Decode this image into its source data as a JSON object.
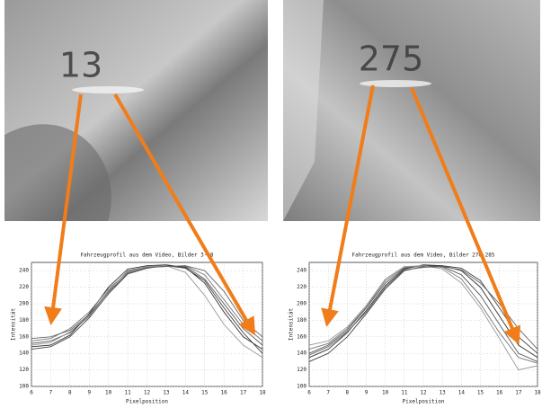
{
  "frames": [
    {
      "label": "13"
    },
    {
      "label": "275"
    }
  ],
  "chart_data": [
    {
      "type": "line",
      "title": "Fahrzeugprofil aus dem Video, Bilder 3-18",
      "xlabel": "Pixelposition",
      "ylabel": "Intensität",
      "x": [
        6,
        7,
        8,
        9,
        10,
        11,
        12,
        13,
        14,
        15,
        16,
        17,
        18
      ],
      "xlim": [
        6,
        18
      ],
      "xticks": [
        6,
        7,
        8,
        9,
        10,
        11,
        12,
        13,
        14,
        15,
        16,
        17,
        18
      ],
      "ylim": [
        100,
        250
      ],
      "yticks": [
        100,
        120,
        140,
        160,
        180,
        200,
        220,
        240
      ],
      "grid": true,
      "series": [
        {
          "color": "#555555",
          "values": [
            152,
            155,
            165,
            185,
            215,
            240,
            245,
            246,
            245,
            230,
            200,
            170,
            150
          ]
        },
        {
          "color": "#333333",
          "values": [
            148,
            150,
            162,
            188,
            220,
            242,
            246,
            247,
            244,
            225,
            190,
            160,
            145
          ]
        },
        {
          "color": "#777777",
          "values": [
            155,
            158,
            170,
            190,
            218,
            238,
            244,
            245,
            246,
            235,
            205,
            175,
            155
          ]
        },
        {
          "color": "#444444",
          "values": [
            145,
            148,
            160,
            183,
            212,
            236,
            243,
            246,
            243,
            228,
            195,
            165,
            140
          ]
        },
        {
          "color": "#999999",
          "values": [
            150,
            153,
            166,
            186,
            216,
            239,
            245,
            246,
            238,
            210,
            175,
            150,
            135
          ]
        },
        {
          "color": "#666666",
          "values": [
            158,
            160,
            168,
            187,
            214,
            237,
            244,
            245,
            246,
            240,
            215,
            180,
            160
          ]
        }
      ]
    },
    {
      "type": "line",
      "title": "Fahrzeugprofil aus dem Video, Bilder 270-285",
      "xlabel": "Pixelposition",
      "ylabel": "Intensität",
      "x": [
        6,
        7,
        8,
        9,
        10,
        11,
        12,
        13,
        14,
        15,
        16,
        17,
        18
      ],
      "xlim": [
        6,
        18
      ],
      "xticks": [
        6,
        7,
        8,
        9,
        10,
        11,
        12,
        13,
        14,
        15,
        16,
        17,
        18
      ],
      "ylim": [
        100,
        250
      ],
      "yticks": [
        100,
        120,
        140,
        160,
        180,
        200,
        220,
        240
      ],
      "grid": true,
      "series": [
        {
          "color": "#555555",
          "values": [
            140,
            150,
            168,
            195,
            225,
            243,
            246,
            245,
            235,
            210,
            175,
            140,
            130
          ]
        },
        {
          "color": "#333333",
          "values": [
            135,
            145,
            165,
            192,
            222,
            242,
            247,
            246,
            240,
            220,
            185,
            150,
            135
          ]
        },
        {
          "color": "#777777",
          "values": [
            145,
            152,
            170,
            196,
            228,
            244,
            246,
            244,
            230,
            200,
            165,
            135,
            128
          ]
        },
        {
          "color": "#444444",
          "values": [
            130,
            140,
            160,
            188,
            218,
            240,
            245,
            246,
            243,
            228,
            195,
            160,
            140
          ]
        },
        {
          "color": "#999999",
          "values": [
            150,
            155,
            172,
            198,
            230,
            245,
            246,
            242,
            225,
            195,
            158,
            120,
            125
          ]
        },
        {
          "color": "#666666",
          "values": [
            138,
            148,
            166,
            190,
            220,
            241,
            244,
            245,
            241,
            225,
            200,
            170,
            145
          ]
        }
      ]
    }
  ]
}
